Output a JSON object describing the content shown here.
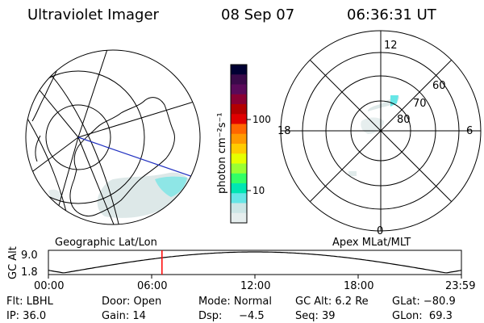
{
  "header": {
    "title": "Ultraviolet Imager",
    "date": "08 Sep 07",
    "time": "06:36:31 UT"
  },
  "left_panel": {
    "label": "Geographic Lat/Lon"
  },
  "colorbar": {
    "unit_label": "photon cm⁻²s⁻¹",
    "ticks": [
      "100",
      "10"
    ],
    "colors": [
      "#000033",
      "#3a0a4a",
      "#5a0a5a",
      "#8a0033",
      "#b30000",
      "#e00000",
      "#ff6600",
      "#ff9900",
      "#ffcc00",
      "#e6ff00",
      "#99ff33",
      "#33ff66",
      "#00e6b3",
      "#66e6e6",
      "#cce6e6",
      "#e6eeee"
    ]
  },
  "right_panel": {
    "label": "Apex MLat/MLT",
    "mlt_labels": {
      "top": "12",
      "left": "18",
      "right": "6",
      "bottom": "0"
    },
    "mlat_labels": [
      "60",
      "70",
      "80"
    ]
  },
  "altitude_panel": {
    "y_label": "GC Alt",
    "y_ticks": [
      "9.0",
      "1.8"
    ],
    "x_ticks": [
      "00:00",
      "06:00",
      "12:00",
      "18:00",
      "23:59"
    ],
    "current_marker_time": "06:36",
    "marker_color": "#ff0000"
  },
  "status": {
    "flt": "Flt: LBHL",
    "door": "Door: Open",
    "mode": "Mode: Normal",
    "gc_alt": "GC Alt: 6.2 Re",
    "glat": "GLat: −80.9",
    "ip": "IP: 36.0",
    "gain": "Gain: 14",
    "dsp": "Dsp:     −4.5",
    "seq": "Seq: 39",
    "glon": "GLon:  69.3"
  }
}
